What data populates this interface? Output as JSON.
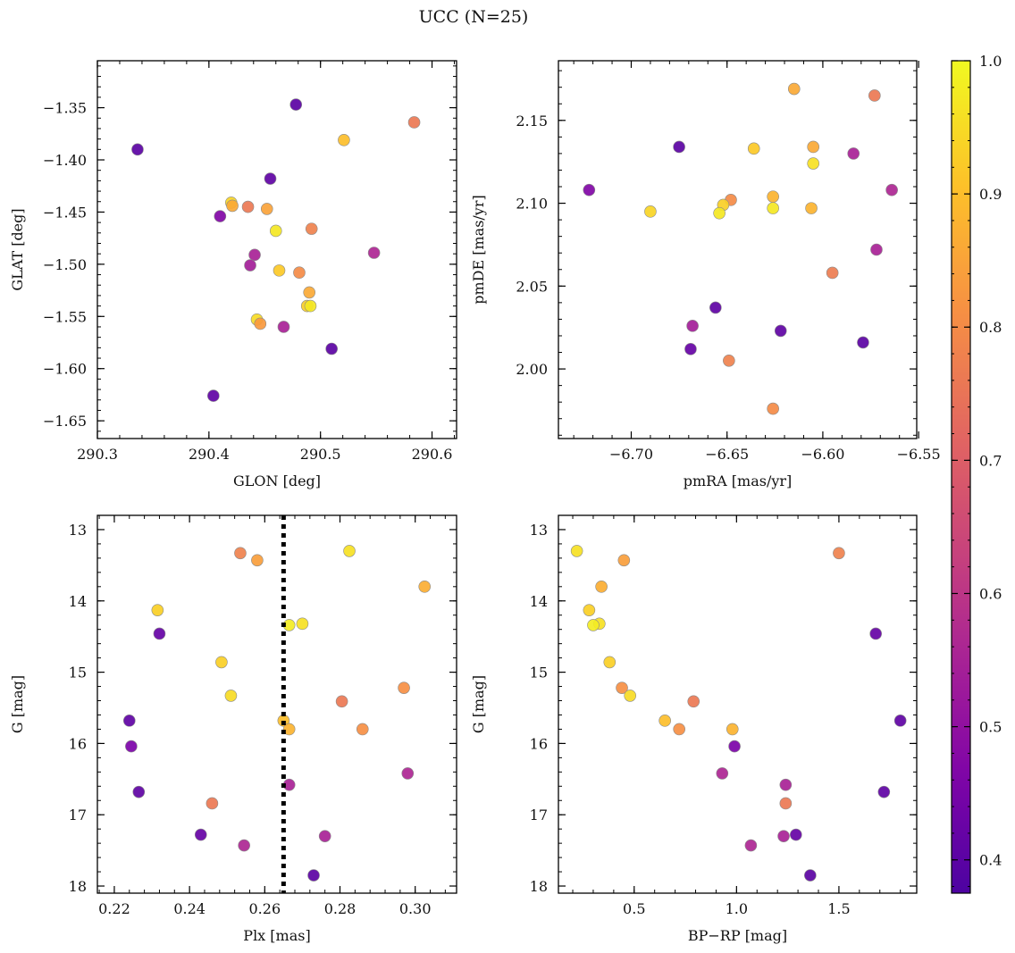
{
  "title": "UCC (N=25)",
  "colorbar": {
    "colormap": "plasma",
    "range": [
      0.375,
      1.0
    ],
    "ticks": [
      "0.4",
      "0.5",
      "0.6",
      "0.7",
      "0.8",
      "0.9",
      "1.0"
    ]
  },
  "chart_data": [
    {
      "type": "scatter",
      "id": "glon-glat",
      "xlabel": "GLON [deg]",
      "ylabel": "GLAT [deg]",
      "xlim": [
        290.3,
        290.622
      ],
      "ylim": [
        -1.667,
        -1.305
      ],
      "xticks": [
        "290.3",
        "290.4",
        "290.5",
        "290.6"
      ],
      "yticks": [
        "-1.65",
        "-1.60",
        "-1.55",
        "-1.50",
        "-1.45",
        "-1.40",
        "-1.35"
      ],
      "points": [
        {
          "x": 290.478,
          "y": -1.347,
          "c": 0.4
        },
        {
          "x": 290.584,
          "y": -1.364,
          "c": 0.76
        },
        {
          "x": 290.521,
          "y": -1.381,
          "c": 0.9
        },
        {
          "x": 290.336,
          "y": -1.39,
          "c": 0.4
        },
        {
          "x": 290.455,
          "y": -1.418,
          "c": 0.41
        },
        {
          "x": 290.42,
          "y": -1.441,
          "c": 0.94
        },
        {
          "x": 290.421,
          "y": -1.444,
          "c": 0.86
        },
        {
          "x": 290.435,
          "y": -1.445,
          "c": 0.76
        },
        {
          "x": 290.452,
          "y": -1.447,
          "c": 0.85
        },
        {
          "x": 290.41,
          "y": -1.454,
          "c": 0.47
        },
        {
          "x": 290.492,
          "y": -1.466,
          "c": 0.78
        },
        {
          "x": 290.46,
          "y": -1.468,
          "c": 0.97
        },
        {
          "x": 290.548,
          "y": -1.489,
          "c": 0.56
        },
        {
          "x": 290.441,
          "y": -1.491,
          "c": 0.55
        },
        {
          "x": 290.437,
          "y": -1.501,
          "c": 0.54
        },
        {
          "x": 290.463,
          "y": -1.506,
          "c": 0.92
        },
        {
          "x": 290.481,
          "y": -1.508,
          "c": 0.8
        },
        {
          "x": 290.49,
          "y": -1.527,
          "c": 0.86
        },
        {
          "x": 290.488,
          "y": -1.54,
          "c": 0.93
        },
        {
          "x": 290.491,
          "y": -1.54,
          "c": 0.97
        },
        {
          "x": 290.443,
          "y": -1.553,
          "c": 0.95
        },
        {
          "x": 290.446,
          "y": -1.557,
          "c": 0.83
        },
        {
          "x": 290.467,
          "y": -1.56,
          "c": 0.55
        },
        {
          "x": 290.51,
          "y": -1.581,
          "c": 0.4
        },
        {
          "x": 290.404,
          "y": -1.626,
          "c": 0.41
        }
      ]
    },
    {
      "type": "scatter",
      "id": "pmra-pmde",
      "xlabel": "pmRA [mas/yr]",
      "ylabel": "pmDE [mas/yr]",
      "xlim": [
        -6.738,
        -6.551
      ],
      "ylim": [
        1.958,
        2.186
      ],
      "xticks": [
        "-6.70",
        "-6.65",
        "-6.60",
        "-6.55"
      ],
      "yticks": [
        "2.00",
        "2.05",
        "2.10",
        "2.15"
      ],
      "points": [
        {
          "x": -6.615,
          "y": 2.169,
          "c": 0.86
        },
        {
          "x": -6.573,
          "y": 2.165,
          "c": 0.76
        },
        {
          "x": -6.675,
          "y": 2.134,
          "c": 0.4
        },
        {
          "x": -6.605,
          "y": 2.134,
          "c": 0.86
        },
        {
          "x": -6.636,
          "y": 2.133,
          "c": 0.92
        },
        {
          "x": -6.584,
          "y": 2.13,
          "c": 0.55
        },
        {
          "x": -6.605,
          "y": 2.124,
          "c": 0.96
        },
        {
          "x": -6.722,
          "y": 2.108,
          "c": 0.47
        },
        {
          "x": -6.564,
          "y": 2.108,
          "c": 0.56
        },
        {
          "x": -6.626,
          "y": 2.104,
          "c": 0.88
        },
        {
          "x": -6.648,
          "y": 2.102,
          "c": 0.8
        },
        {
          "x": -6.652,
          "y": 2.099,
          "c": 0.93
        },
        {
          "x": -6.626,
          "y": 2.097,
          "c": 0.97
        },
        {
          "x": -6.606,
          "y": 2.097,
          "c": 0.88
        },
        {
          "x": -6.69,
          "y": 2.095,
          "c": 0.94
        },
        {
          "x": -6.654,
          "y": 2.094,
          "c": 0.97
        },
        {
          "x": -6.572,
          "y": 2.072,
          "c": 0.55
        },
        {
          "x": -6.595,
          "y": 2.058,
          "c": 0.77
        },
        {
          "x": -6.656,
          "y": 2.037,
          "c": 0.41
        },
        {
          "x": -6.668,
          "y": 2.026,
          "c": 0.54
        },
        {
          "x": -6.622,
          "y": 2.023,
          "c": 0.41
        },
        {
          "x": -6.579,
          "y": 2.016,
          "c": 0.4
        },
        {
          "x": -6.669,
          "y": 2.012,
          "c": 0.42
        },
        {
          "x": -6.649,
          "y": 2.005,
          "c": 0.78
        },
        {
          "x": -6.626,
          "y": 1.976,
          "c": 0.8
        }
      ]
    },
    {
      "type": "scatter",
      "id": "plx-g",
      "xlabel": "Plx [mas]",
      "ylabel": "G [mag]",
      "xlim": [
        0.2155,
        0.311
      ],
      "ylim": [
        18.1,
        12.8
      ],
      "ylim_inverted": true,
      "vline": {
        "x": 0.265,
        "style": "dotted"
      },
      "xticks": [
        "0.22",
        "0.24",
        "0.26",
        "0.28",
        "0.30"
      ],
      "yticks": [
        "13",
        "14",
        "15",
        "16",
        "17",
        "18"
      ],
      "points": [
        {
          "x": 0.2535,
          "y": 13.33,
          "c": 0.78
        },
        {
          "x": 0.258,
          "y": 13.43,
          "c": 0.84
        },
        {
          "x": 0.2825,
          "y": 13.3,
          "c": 0.96
        },
        {
          "x": 0.3025,
          "y": 13.8,
          "c": 0.87
        },
        {
          "x": 0.2315,
          "y": 14.13,
          "c": 0.93
        },
        {
          "x": 0.232,
          "y": 14.46,
          "c": 0.42
        },
        {
          "x": 0.2665,
          "y": 14.34,
          "c": 0.98
        },
        {
          "x": 0.27,
          "y": 14.32,
          "c": 0.96
        },
        {
          "x": 0.2485,
          "y": 14.86,
          "c": 0.93
        },
        {
          "x": 0.251,
          "y": 15.33,
          "c": 0.95
        },
        {
          "x": 0.2805,
          "y": 15.41,
          "c": 0.76
        },
        {
          "x": 0.297,
          "y": 15.22,
          "c": 0.81
        },
        {
          "x": 0.224,
          "y": 15.68,
          "c": 0.41
        },
        {
          "x": 0.265,
          "y": 15.68,
          "c": 0.9
        },
        {
          "x": 0.2665,
          "y": 15.8,
          "c": 0.88
        },
        {
          "x": 0.286,
          "y": 15.8,
          "c": 0.81
        },
        {
          "x": 0.2245,
          "y": 16.04,
          "c": 0.46
        },
        {
          "x": 0.298,
          "y": 16.42,
          "c": 0.56
        },
        {
          "x": 0.2665,
          "y": 16.58,
          "c": 0.55
        },
        {
          "x": 0.2265,
          "y": 16.68,
          "c": 0.41
        },
        {
          "x": 0.246,
          "y": 16.84,
          "c": 0.76
        },
        {
          "x": 0.243,
          "y": 17.28,
          "c": 0.42
        },
        {
          "x": 0.276,
          "y": 17.3,
          "c": 0.55
        },
        {
          "x": 0.2545,
          "y": 17.43,
          "c": 0.56
        },
        {
          "x": 0.273,
          "y": 17.85,
          "c": 0.4
        }
      ]
    },
    {
      "type": "scatter",
      "id": "bprp-g",
      "xlabel": "BP-RP [mag]",
      "ylabel": "G [mag]",
      "xlim": [
        0.13,
        1.88
      ],
      "ylim": [
        18.1,
        12.8
      ],
      "ylim_inverted": true,
      "xticks": [
        "0.5",
        "1.0",
        "1.5"
      ],
      "yticks": [
        "13",
        "14",
        "15",
        "16",
        "17",
        "18"
      ],
      "points": [
        {
          "x": 0.22,
          "y": 13.3,
          "c": 0.96
        },
        {
          "x": 0.45,
          "y": 13.43,
          "c": 0.84
        },
        {
          "x": 1.5,
          "y": 13.33,
          "c": 0.78
        },
        {
          "x": 0.34,
          "y": 13.8,
          "c": 0.87
        },
        {
          "x": 0.28,
          "y": 14.13,
          "c": 0.93
        },
        {
          "x": 0.33,
          "y": 14.32,
          "c": 0.96
        },
        {
          "x": 0.3,
          "y": 14.34,
          "c": 0.98
        },
        {
          "x": 1.68,
          "y": 14.46,
          "c": 0.42
        },
        {
          "x": 0.38,
          "y": 14.86,
          "c": 0.93
        },
        {
          "x": 0.44,
          "y": 15.22,
          "c": 0.81
        },
        {
          "x": 0.48,
          "y": 15.33,
          "c": 0.95
        },
        {
          "x": 0.79,
          "y": 15.41,
          "c": 0.76
        },
        {
          "x": 0.65,
          "y": 15.68,
          "c": 0.9
        },
        {
          "x": 1.8,
          "y": 15.68,
          "c": 0.41
        },
        {
          "x": 0.72,
          "y": 15.8,
          "c": 0.81
        },
        {
          "x": 0.98,
          "y": 15.8,
          "c": 0.88
        },
        {
          "x": 0.99,
          "y": 16.04,
          "c": 0.46
        },
        {
          "x": 0.93,
          "y": 16.42,
          "c": 0.56
        },
        {
          "x": 1.24,
          "y": 16.58,
          "c": 0.55
        },
        {
          "x": 1.72,
          "y": 16.68,
          "c": 0.41
        },
        {
          "x": 1.24,
          "y": 16.84,
          "c": 0.76
        },
        {
          "x": 1.29,
          "y": 17.28,
          "c": 0.42
        },
        {
          "x": 1.23,
          "y": 17.3,
          "c": 0.55
        },
        {
          "x": 1.07,
          "y": 17.43,
          "c": 0.56
        },
        {
          "x": 1.36,
          "y": 17.85,
          "c": 0.4
        }
      ]
    }
  ]
}
